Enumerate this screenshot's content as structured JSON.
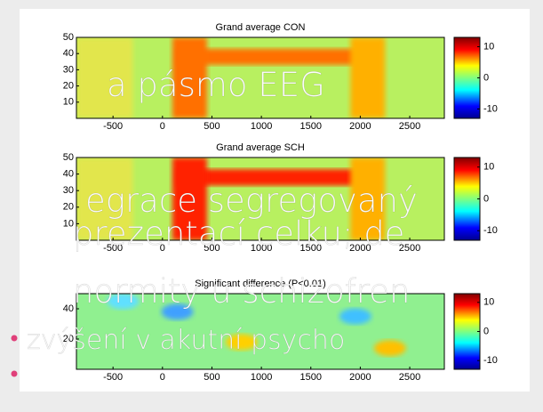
{
  "panels": [
    {
      "title": "Grand average CON",
      "xlim": [
        -870,
        2850
      ],
      "xticks": [
        -500,
        0,
        500,
        1000,
        1500,
        2000,
        2500
      ],
      "ylim": [
        0,
        50
      ],
      "yticks": [
        10,
        20,
        30,
        40,
        50
      ],
      "clim": [
        -13,
        13
      ],
      "cticks": [
        10,
        0,
        -10
      ]
    },
    {
      "title": "Grand average SCH",
      "xlim": [
        -870,
        2850
      ],
      "xticks": [
        -500,
        0,
        500,
        1000,
        1500,
        2000,
        2500
      ],
      "ylim": [
        0,
        50
      ],
      "yticks": [
        10,
        20,
        30,
        40,
        50
      ],
      "clim": [
        -13,
        13
      ],
      "cticks": [
        10,
        0,
        -10
      ]
    },
    {
      "title": "Significant difference (P<0.01)",
      "xlim": [
        -870,
        2850
      ],
      "xticks": [
        -500,
        0,
        500,
        1000,
        1500,
        2000,
        2500
      ],
      "ylim": [
        0,
        50
      ],
      "yticks": [
        20,
        40
      ],
      "clim": [
        -13,
        13
      ],
      "cticks": [
        10,
        0,
        -10
      ]
    }
  ],
  "slide": {
    "lines": [
      "a pásmo EEG",
      "egrace segregovaný",
      "prezentací celku; de",
      "normity u schizofren"
    ],
    "bullets": [
      "zvýšení v akutní psycho",
      ""
    ]
  }
}
